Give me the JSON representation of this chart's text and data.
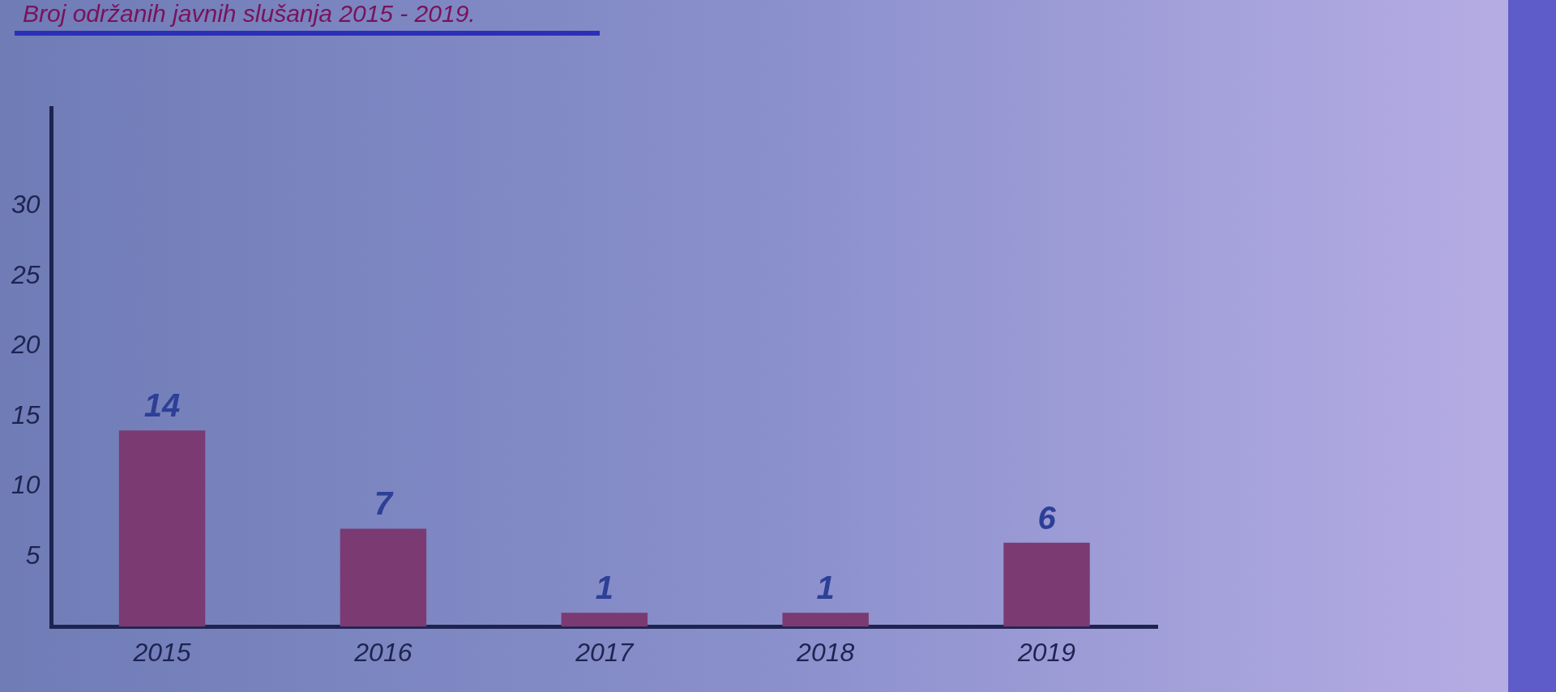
{
  "chart_data": {
    "type": "bar",
    "title": "Broj održanih javnih slušanja 2015 - 2019.",
    "categories": [
      "2015",
      "2016",
      "2017",
      "2018",
      "2019"
    ],
    "values": [
      14,
      7,
      1,
      1,
      6
    ],
    "color": "#7b3a72",
    "ylim": [
      0,
      37
    ],
    "yticks": [
      5,
      10,
      15,
      20,
      25,
      30
    ],
    "grid": false,
    "legend": false,
    "data_labels": true
  }
}
